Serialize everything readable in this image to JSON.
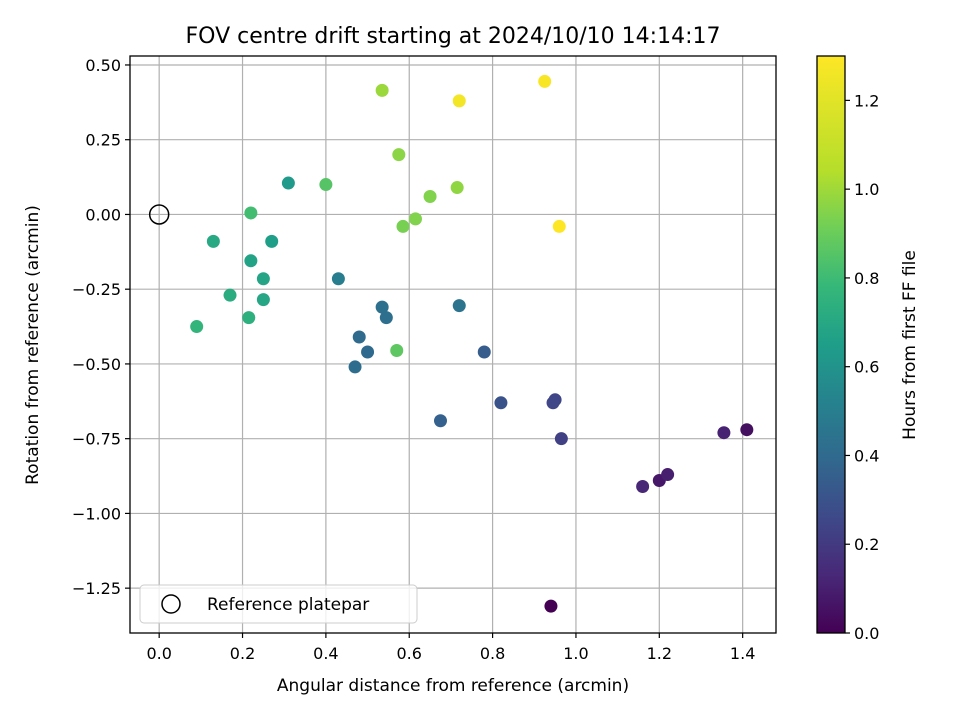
{
  "chart_data": {
    "type": "scatter",
    "title": "FOV centre drift starting at 2024/10/10 14:14:17",
    "xlabel": "Angular distance from reference (arcmin)",
    "ylabel": "Rotation from reference (arcmin)",
    "xlim": [
      -0.07,
      1.48
    ],
    "ylim": [
      -1.4,
      0.53
    ],
    "xticks": [
      0.0,
      0.2,
      0.4,
      0.6,
      0.8,
      1.0,
      1.2,
      1.4
    ],
    "xtick_labels": [
      "0.0",
      "0.2",
      "0.4",
      "0.6",
      "0.8",
      "1.0",
      "1.2",
      "1.4"
    ],
    "yticks": [
      0.5,
      0.25,
      0.0,
      -0.25,
      -0.5,
      -0.75,
      -1.0,
      -1.25
    ],
    "ytick_labels": [
      "0.50",
      "0.25",
      "0.00",
      "−0.25",
      "−0.50",
      "−0.75",
      "−1.00",
      "−1.25"
    ],
    "grid": true,
    "colormap": "viridis",
    "colorbar": {
      "label": "Hours from first FF file",
      "range": [
        0.0,
        1.3
      ],
      "ticks": [
        0.0,
        0.2,
        0.4,
        0.6,
        0.8,
        1.0,
        1.2
      ],
      "tick_labels": [
        "0.0",
        "0.2",
        "0.4",
        "0.6",
        "0.8",
        "1.0",
        "1.2"
      ]
    },
    "legend": {
      "position": "bottom-left",
      "entries": [
        {
          "label": "Reference platepar",
          "marker": "open-circle"
        }
      ]
    },
    "reference_point": {
      "x": 0.0,
      "y": 0.0
    },
    "points": [
      {
        "x": 0.94,
        "y": -1.31,
        "t": 0.0
      },
      {
        "x": 1.41,
        "y": -0.72,
        "t": 0.05
      },
      {
        "x": 1.2,
        "y": -0.89,
        "t": 0.08
      },
      {
        "x": 1.22,
        "y": -0.87,
        "t": 0.11
      },
      {
        "x": 1.16,
        "y": -0.91,
        "t": 0.14
      },
      {
        "x": 1.355,
        "y": -0.73,
        "t": 0.12
      },
      {
        "x": 0.965,
        "y": -0.75,
        "t": 0.25
      },
      {
        "x": 0.95,
        "y": -0.62,
        "t": 0.27
      },
      {
        "x": 0.945,
        "y": -0.63,
        "t": 0.28
      },
      {
        "x": 0.82,
        "y": -0.63,
        "t": 0.33
      },
      {
        "x": 0.78,
        "y": -0.46,
        "t": 0.38
      },
      {
        "x": 0.675,
        "y": -0.69,
        "t": 0.4
      },
      {
        "x": 0.5,
        "y": -0.46,
        "t": 0.44
      },
      {
        "x": 0.47,
        "y": -0.51,
        "t": 0.46
      },
      {
        "x": 0.48,
        "y": -0.41,
        "t": 0.45
      },
      {
        "x": 0.545,
        "y": -0.345,
        "t": 0.47
      },
      {
        "x": 0.535,
        "y": -0.31,
        "t": 0.48
      },
      {
        "x": 0.72,
        "y": -0.305,
        "t": 0.5
      },
      {
        "x": 0.43,
        "y": -0.215,
        "t": 0.55
      },
      {
        "x": 0.31,
        "y": 0.105,
        "t": 0.7
      },
      {
        "x": 0.27,
        "y": -0.09,
        "t": 0.73
      },
      {
        "x": 0.22,
        "y": -0.155,
        "t": 0.75
      },
      {
        "x": 0.25,
        "y": -0.215,
        "t": 0.76
      },
      {
        "x": 0.25,
        "y": -0.285,
        "t": 0.77
      },
      {
        "x": 0.13,
        "y": -0.09,
        "t": 0.78
      },
      {
        "x": 0.17,
        "y": -0.27,
        "t": 0.8
      },
      {
        "x": 0.215,
        "y": -0.345,
        "t": 0.82
      },
      {
        "x": 0.09,
        "y": -0.375,
        "t": 0.85
      },
      {
        "x": 0.22,
        "y": 0.005,
        "t": 0.9
      },
      {
        "x": 0.4,
        "y": 0.1,
        "t": 0.95
      },
      {
        "x": 0.57,
        "y": -0.455,
        "t": 0.97
      },
      {
        "x": 0.585,
        "y": -0.04,
        "t": 1.03
      },
      {
        "x": 0.615,
        "y": -0.015,
        "t": 1.05
      },
      {
        "x": 0.65,
        "y": 0.06,
        "t": 1.05
      },
      {
        "x": 0.575,
        "y": 0.2,
        "t": 1.07
      },
      {
        "x": 0.715,
        "y": 0.09,
        "t": 1.08
      },
      {
        "x": 0.535,
        "y": 0.415,
        "t": 1.1
      },
      {
        "x": 0.72,
        "y": 0.38,
        "t": 1.28
      },
      {
        "x": 0.925,
        "y": 0.445,
        "t": 1.29
      },
      {
        "x": 0.96,
        "y": -0.04,
        "t": 1.3
      }
    ]
  }
}
